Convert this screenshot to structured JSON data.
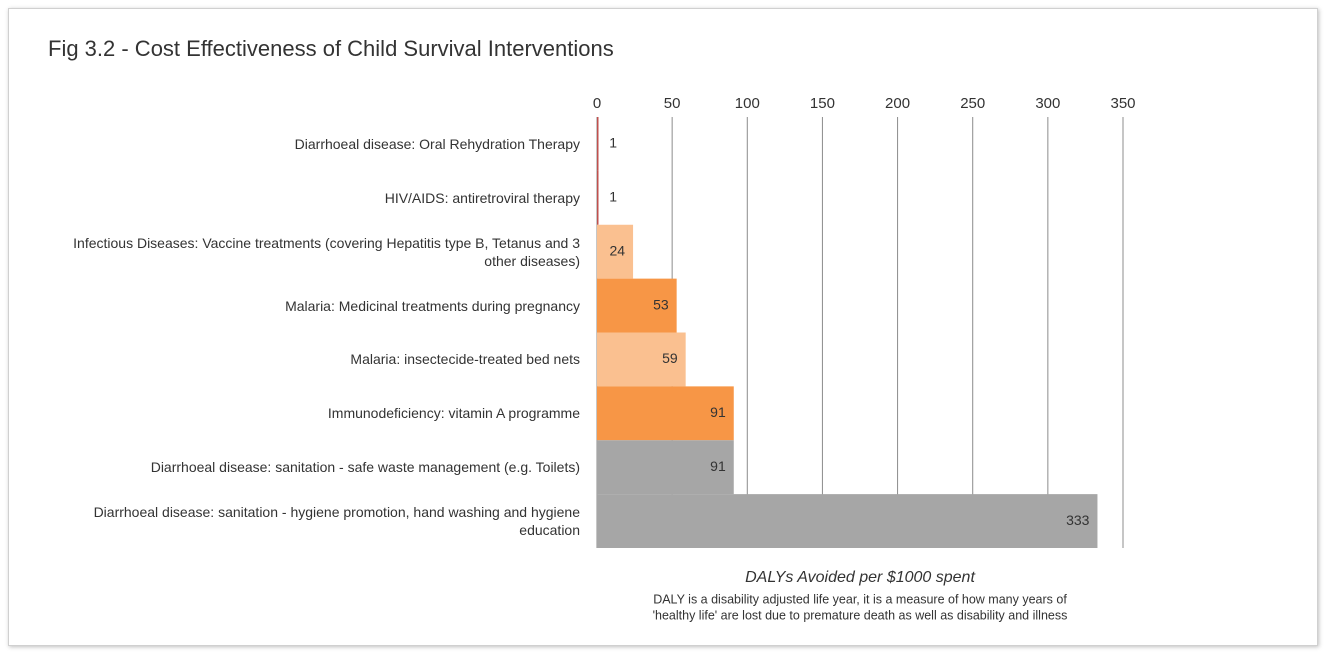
{
  "chart_data": {
    "type": "bar",
    "orientation": "horizontal",
    "title": "Fig 3.2 - Cost Effectiveness of Child Survival Interventions",
    "categories": [
      "Diarrhoeal disease: Oral Rehydration Therapy",
      "HIV/AIDS: antiretroviral therapy",
      "Infectious Diseases: Vaccine treatments (covering Hepatitis type B, Tetanus and 3 other diseases)",
      "Malaria: Medicinal treatments during pregnancy",
      "Malaria: insectecide-treated bed nets",
      "Immunodeficiency: vitamin A programme",
      "Diarrhoeal disease: sanitation - safe waste management (e.g. Toilets)",
      "Diarrhoeal disease: sanitation - hygiene promotion, hand washing and hygiene education"
    ],
    "values": [
      1,
      1,
      24,
      53,
      59,
      91,
      91,
      333
    ],
    "colors": [
      "#c0504d",
      "#c0504d",
      "#fac090",
      "#f79646",
      "#fac090",
      "#f79646",
      "#a6a6a6",
      "#a6a6a6"
    ],
    "xlim": [
      0,
      350
    ],
    "xticks": [
      0,
      50,
      100,
      150,
      200,
      250,
      300,
      350
    ],
    "grid": true,
    "x_label": "DALYs Avoided per $1000 spent",
    "note": [
      "DALY is a disability adjusted life year, it is a measure of how many years of",
      "'healthy life' are lost due to premature death as well as disability and illness"
    ]
  }
}
